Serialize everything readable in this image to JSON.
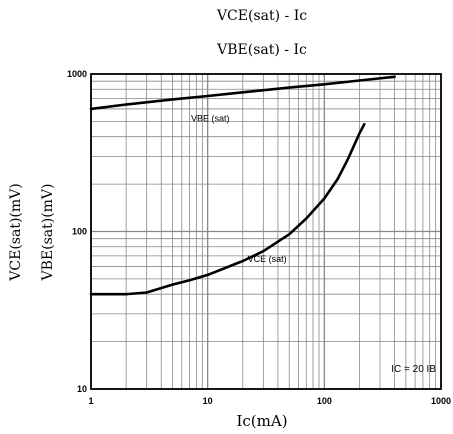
{
  "chart_data": {
    "type": "line",
    "title_lines": [
      "VCE(sat) - Ic",
      "VBE(sat) - Ic"
    ],
    "xlabel": "Ic(mA)",
    "ylabel_lines": [
      "VCE(sat)(mV)",
      "VBE(sat)(mV)"
    ],
    "x_scale": "log",
    "y_scale": "log",
    "xlim": [
      1,
      1000
    ],
    "ylim": [
      10,
      1000
    ],
    "x_ticks": [
      1,
      10,
      100,
      1000
    ],
    "x_tick_labels": [
      "1",
      "10",
      "100",
      "1000"
    ],
    "y_ticks": [
      10,
      100,
      1000
    ],
    "y_tick_labels": [
      "10",
      "100",
      "1000"
    ],
    "grid": true,
    "annotation": "IC = 20 IB",
    "series": [
      {
        "name": "VBE (sat)",
        "x": [
          1,
          2,
          5,
          10,
          20,
          50,
          100,
          200,
          400
        ],
        "y": [
          600,
          640,
          690,
          725,
          765,
          820,
          860,
          910,
          960
        ]
      },
      {
        "name": "VCE (sat)",
        "x": [
          1,
          2,
          3,
          5,
          7,
          10,
          20,
          30,
          50,
          70,
          100,
          130,
          160,
          200,
          220
        ],
        "y": [
          40,
          40,
          41,
          46,
          49,
          53,
          65,
          75,
          96,
          121,
          162,
          215,
          290,
          420,
          480
        ]
      }
    ]
  }
}
